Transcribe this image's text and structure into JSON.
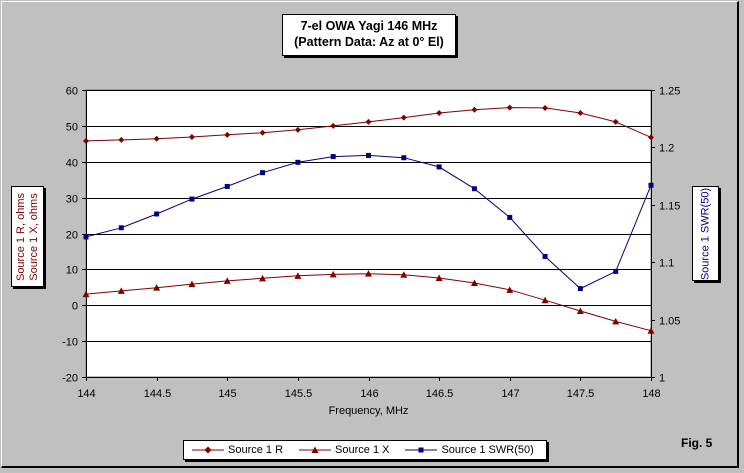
{
  "chart_data": {
    "type": "line",
    "title_line1": "7-el OWA Yagi 146 MHz",
    "title_line2": "(Pattern Data: Az at 0° El)",
    "xlabel": "Frequency, MHz",
    "ylabel_left_line1": "Source 1 R, ohms",
    "ylabel_left_line2": "Source 1 X, ohms",
    "ylabel_right": "Source 1 SWR(50)",
    "xlim": [
      144,
      148
    ],
    "ylim_left": [
      -20,
      60
    ],
    "ylim_right": [
      1,
      1.25
    ],
    "x_ticks": [
      "144",
      "144.5",
      "145",
      "145.5",
      "146",
      "146.5",
      "147",
      "147.5",
      "148"
    ],
    "y_ticks_left": [
      "60",
      "50",
      "40",
      "30",
      "20",
      "10",
      "0",
      "-10",
      "-20"
    ],
    "y_ticks_right": [
      "1.25",
      "1.2",
      "1.15",
      "1.1",
      "1.05",
      "1"
    ],
    "grid": "horizontal",
    "legend_position": "bottom",
    "x": [
      144,
      144.25,
      144.5,
      144.75,
      145,
      145.25,
      145.5,
      145.75,
      146,
      146.25,
      146.5,
      146.75,
      147,
      147.25,
      147.5,
      147.75,
      148
    ],
    "series": [
      {
        "name": "Source 1 R",
        "axis": "left",
        "marker": "diamond",
        "color": "#800000",
        "values": [
          45.8,
          46.1,
          46.4,
          46.9,
          47.5,
          48.1,
          48.9,
          50.0,
          51.1,
          52.3,
          53.6,
          54.5,
          55.1,
          55.0,
          53.6,
          51.1,
          46.8
        ]
      },
      {
        "name": "Source 1 X",
        "axis": "left",
        "marker": "triangle",
        "color": "#800000",
        "values": [
          3.1,
          4.0,
          4.9,
          5.9,
          6.8,
          7.5,
          8.2,
          8.6,
          8.8,
          8.5,
          7.6,
          6.2,
          4.3,
          1.4,
          -1.6,
          -4.5,
          -7.1
        ]
      },
      {
        "name": "Source 1 SWR(50)",
        "axis": "right",
        "marker": "square",
        "color": "#000080",
        "values": [
          1.122,
          1.13,
          1.142,
          1.155,
          1.166,
          1.178,
          1.187,
          1.192,
          1.193,
          1.191,
          1.183,
          1.164,
          1.139,
          1.105,
          1.077,
          1.092,
          1.167
        ]
      }
    ]
  },
  "fig_label": "Fig. 5"
}
